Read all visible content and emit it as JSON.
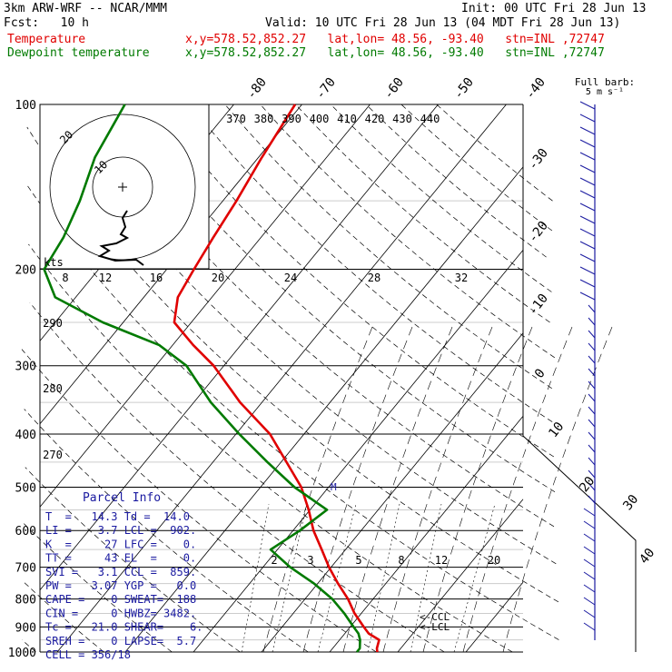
{
  "header": {
    "model": "3km ARW-WRF -- NCAR/MMM",
    "init": "Init: 00 UTC Fri 28 Jun 13",
    "fcst": "Fcst:   10 h",
    "valid": "Valid: 10 UTC Fri 28 Jun 13 (04 MDT Fri 28 Jun 13)"
  },
  "legend": [
    {
      "name": "Temperature",
      "loc": "x,y=578.52,852.27   lat,lon= 48.56, -93.40   stn=INL ,72747",
      "color": "#e00000"
    },
    {
      "name": "Dewpoint temperature",
      "loc": "x,y=578.52,852.27   lat,lon= 48.56, -93.40   stn=INL ,72747",
      "color": "#007a00"
    }
  ],
  "wind_label": {
    "title": "Full barb:",
    "units": "5 m s⁻¹"
  },
  "hodograph_label": "kts",
  "parcel_info": {
    "title": "Parcel Info",
    "rows": [
      "T  =   14.3 Td =  14.0",
      "LI =    3.7 LCL =  902.",
      "K  =     27 LFC =    0.",
      "TT =     43 EL  =    0.",
      "SVI =   3.1 CCL =  859.",
      "PW =   3.07 YGP =   0.0",
      "CAPE =    0 SWEAT=  188",
      "CIN =     0 HWBZ= 3482.",
      "Tc =   21.0 SHEAR=    6.",
      "SREH =    0 LAPSE=  5.7",
      "CELL = 356/18"
    ]
  },
  "annotations": {
    "ccl": "<-CCL",
    "lcl": "<-LCL",
    "parcel_marker": "M"
  },
  "chart_data": {
    "type": "line",
    "subtype": "skew-T log-P",
    "pressure_ticks": [
      100,
      200,
      300,
      400,
      500,
      600,
      700,
      800,
      900,
      1000
    ],
    "isotherm_labels": [
      "-80",
      "-70",
      "-60",
      "-50",
      "-40",
      "-30",
      "-20",
      "-10",
      "0",
      "10",
      "20",
      "30",
      "40"
    ],
    "theta_e_labels": [
      "370",
      "380",
      "390",
      "400",
      "410",
      "420",
      "430",
      "440"
    ],
    "dry_adiabat_labels": [
      "290",
      "280",
      "270"
    ],
    "mixing_ratio_labels": [
      "2",
      "3",
      "5",
      "8",
      "12",
      "20"
    ],
    "hodograph_rings": [
      "10",
      "20"
    ],
    "hodograph_speed_ticks": [
      "8",
      "12",
      "16",
      "20",
      "24",
      "28",
      "32"
    ],
    "series": [
      {
        "name": "Temperature",
        "color": "#e00000",
        "pressure": [
          1000,
          985,
          950,
          925,
          900,
          850,
          800,
          750,
          700,
          650,
          600,
          550,
          500,
          450,
          400,
          350,
          300,
          275,
          250,
          225,
          200,
          175,
          150,
          125,
          100
        ],
        "temperature": [
          17.0,
          16.5,
          15.8,
          13.5,
          12.0,
          9.0,
          6.3,
          3.0,
          -0.3,
          -3.5,
          -7.0,
          -10.2,
          -14.0,
          -19.2,
          -25.0,
          -33.2,
          -41.5,
          -47.0,
          -52.5,
          -55.0,
          -56.0,
          -57.0,
          -58.0,
          -59.5,
          -61.0
        ]
      },
      {
        "name": "Dewpoint temperature",
        "color": "#007a00",
        "pressure": [
          1000,
          985,
          950,
          925,
          900,
          850,
          800,
          750,
          700,
          650,
          600,
          550,
          500,
          450,
          400,
          350,
          300,
          275,
          250,
          225,
          200,
          175,
          150,
          125,
          100
        ],
        "temperature": [
          14.0,
          14.0,
          13.0,
          12.0,
          10.5,
          7.5,
          4.0,
          -0.5,
          -6.0,
          -11.0,
          -9.0,
          -7.5,
          -15.0,
          -22.0,
          -29.5,
          -37.5,
          -45.5,
          -52.0,
          -63.0,
          -73.0,
          -78.0,
          -79.0,
          -81.0,
          -84.0,
          -86.0
        ]
      }
    ]
  }
}
